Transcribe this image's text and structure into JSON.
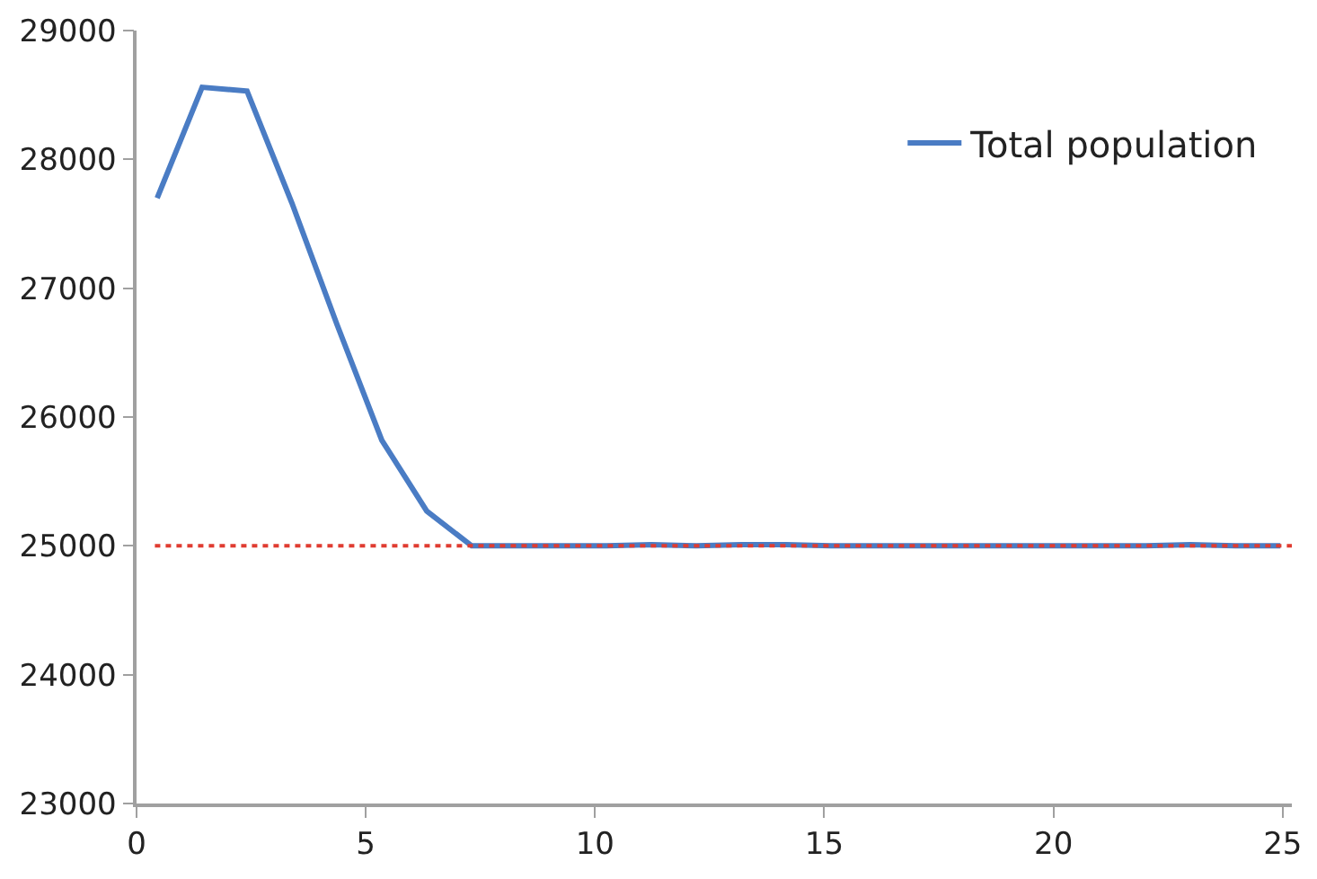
{
  "chart_data": {
    "type": "line",
    "x": [
      0.45,
      1.43,
      2.41,
      3.39,
      4.37,
      5.35,
      6.33,
      7.31,
      8.29,
      9.27,
      10.25,
      11.23,
      12.21,
      13.19,
      14.17,
      15.15,
      16.13,
      17.11,
      18.09,
      19.07,
      20.05,
      21.03,
      22.01,
      22.99,
      23.97,
      24.95
    ],
    "series": [
      {
        "name": "Total population",
        "color": "#4a7cc4",
        "values": [
          27700,
          28560,
          28530,
          27660,
          26720,
          25820,
          25270,
          25000,
          25000,
          25000,
          25000,
          25010,
          25000,
          25010,
          25010,
          25000,
          25000,
          25000,
          25000,
          25000,
          25000,
          25000,
          25000,
          25010,
          25000,
          25000
        ]
      }
    ],
    "xlim": [
      0,
      25.2
    ],
    "xticks": [
      0,
      5,
      10,
      15,
      20,
      25
    ],
    "ylim": [
      23000,
      29000
    ],
    "yticks": [
      23000,
      24000,
      25000,
      26000,
      27000,
      28000,
      29000
    ],
    "ref_lines": [
      {
        "axis": "y",
        "value": 25000,
        "color": "#e03c31",
        "line_style": "dotted"
      }
    ],
    "legend": "top right",
    "marker": "none",
    "line_style": "solid"
  }
}
